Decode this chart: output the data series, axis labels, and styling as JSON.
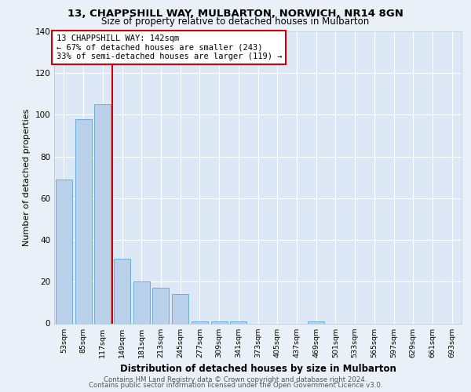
{
  "title1": "13, CHAPPSHILL WAY, MULBARTON, NORWICH, NR14 8GN",
  "title2": "Size of property relative to detached houses in Mulbarton",
  "xlabel": "Distribution of detached houses by size in Mulbarton",
  "ylabel": "Number of detached properties",
  "footer1": "Contains HM Land Registry data © Crown copyright and database right 2024.",
  "footer2": "Contains public sector information licensed under the Open Government Licence v3.0.",
  "bar_labels": [
    "53sqm",
    "85sqm",
    "117sqm",
    "149sqm",
    "181sqm",
    "213sqm",
    "245sqm",
    "277sqm",
    "309sqm",
    "341sqm",
    "373sqm",
    "405sqm",
    "437sqm",
    "469sqm",
    "501sqm",
    "533sqm",
    "565sqm",
    "597sqm",
    "629sqm",
    "661sqm",
    "693sqm"
  ],
  "bar_values": [
    69,
    98,
    105,
    31,
    20,
    17,
    14,
    1,
    1,
    1,
    0,
    0,
    0,
    1,
    0,
    0,
    0,
    0,
    0,
    0,
    0
  ],
  "bar_color": "#b8d0ea",
  "bar_edge_color": "#6aaed6",
  "property_line_x": 2.5,
  "property_label": "13 CHAPPSHILL WAY: 142sqm",
  "annotation_line1": "← 67% of detached houses are smaller (243)",
  "annotation_line2": "33% of semi-detached houses are larger (119) →",
  "annotation_box_color": "#ffffff",
  "annotation_box_edge_color": "#cc0000",
  "line_color": "#cc0000",
  "ylim": [
    0,
    140
  ],
  "yticks": [
    0,
    20,
    40,
    60,
    80,
    100,
    120,
    140
  ],
  "fig_bg_color": "#eaf0f8",
  "plot_bg_color": "#dce8f5"
}
